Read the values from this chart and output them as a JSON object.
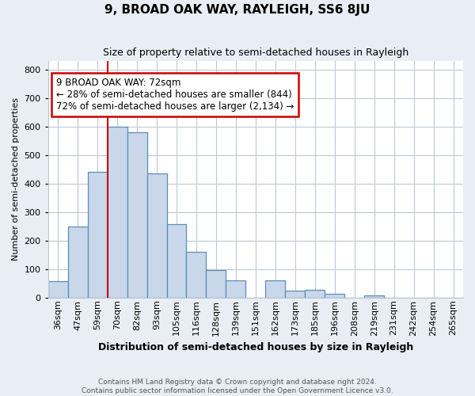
{
  "title": "9, BROAD OAK WAY, RAYLEIGH, SS6 8JU",
  "subtitle": "Size of property relative to semi-detached houses in Rayleigh",
  "xlabel": "Distribution of semi-detached houses by size in Rayleigh",
  "ylabel": "Number of semi-detached properties",
  "footer_line1": "Contains HM Land Registry data © Crown copyright and database right 2024.",
  "footer_line2": "Contains public sector information licensed under the Open Government Licence v3.0.",
  "categories": [
    "36sqm",
    "47sqm",
    "59sqm",
    "70sqm",
    "82sqm",
    "93sqm",
    "105sqm",
    "116sqm",
    "128sqm",
    "139sqm",
    "151sqm",
    "162sqm",
    "173sqm",
    "185sqm",
    "196sqm",
    "208sqm",
    "219sqm",
    "231sqm",
    "242sqm",
    "254sqm",
    "265sqm"
  ],
  "values": [
    57,
    250,
    440,
    600,
    580,
    435,
    258,
    160,
    97,
    60,
    0,
    60,
    25,
    27,
    12,
    0,
    8,
    0,
    0,
    0,
    0
  ],
  "bar_color": "#c8d8ea",
  "bar_edge_color": "#5b8db8",
  "annotation_text_line1": "9 BROAD OAK WAY: 72sqm",
  "annotation_text_line2": "← 28% of semi-detached houses are smaller (844)",
  "annotation_text_line3": "72% of semi-detached houses are larger (2,134) →",
  "vline_color": "#cc0000",
  "vline_x_index": 3,
  "annotation_box_color": "#ffffff",
  "annotation_box_edge_color": "#cc0000",
  "ylim": [
    0,
    830
  ],
  "yticks": [
    0,
    100,
    200,
    300,
    400,
    500,
    600,
    700,
    800
  ],
  "background_color": "#e8eef4",
  "plot_bg_color": "#ffffff",
  "grid_color": "#c0c8d4",
  "title_fontsize": 11,
  "subtitle_fontsize": 9,
  "xlabel_fontsize": 9,
  "ylabel_fontsize": 8,
  "tick_fontsize": 8,
  "annotation_fontsize": 8.5
}
